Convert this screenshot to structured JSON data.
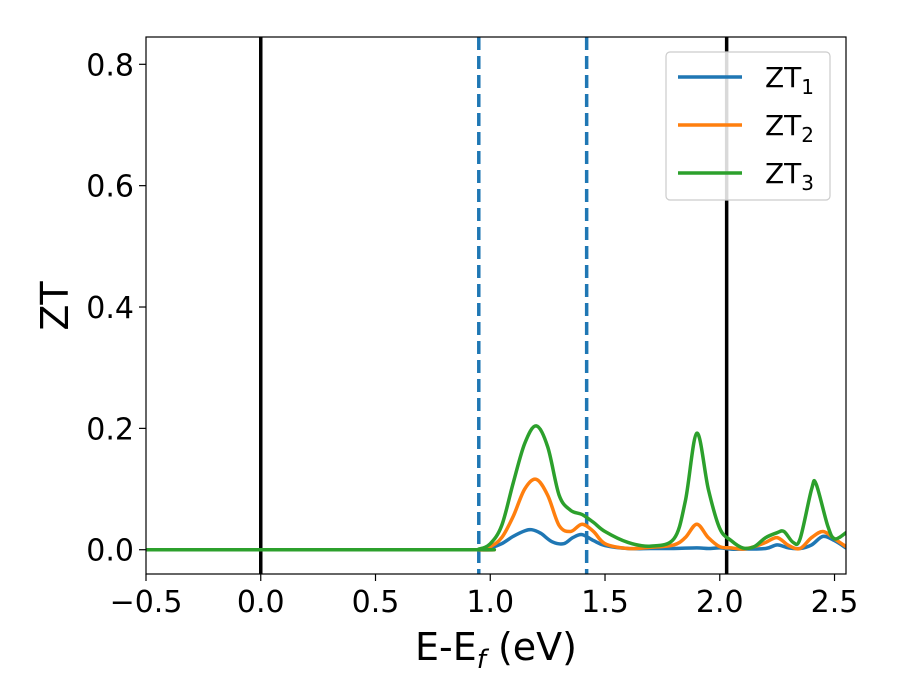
{
  "chart_data": {
    "type": "line",
    "xlabel": "E-E",
    "xlabel_sub": "f",
    "xlabel_unit": " (eV)",
    "ylabel": "ZT",
    "xlim": [
      -0.5,
      2.55
    ],
    "ylim": [
      -0.04,
      0.845
    ],
    "xticks": [
      {
        "value": -0.5,
        "label": "−0.5"
      },
      {
        "value": 0.0,
        "label": "0.0"
      },
      {
        "value": 0.5,
        "label": "0.5"
      },
      {
        "value": 1.0,
        "label": "1.0"
      },
      {
        "value": 1.5,
        "label": "1.5"
      },
      {
        "value": 2.0,
        "label": "2.0"
      },
      {
        "value": 2.5,
        "label": "2.5"
      }
    ],
    "yticks": [
      {
        "value": 0.0,
        "label": "0.0"
      },
      {
        "value": 0.2,
        "label": "0.2"
      },
      {
        "value": 0.4,
        "label": "0.4"
      },
      {
        "value": 0.6,
        "label": "0.6"
      },
      {
        "value": 0.8,
        "label": "0.8"
      }
    ],
    "grid": false,
    "legend_position": "top-right",
    "vlines": [
      {
        "x": 0.0,
        "style": "solid",
        "color": "#000000"
      },
      {
        "x": 2.03,
        "style": "solid",
        "color": "#000000"
      },
      {
        "x": 0.95,
        "style": "dashed",
        "color": "#1f77b4"
      },
      {
        "x": 1.42,
        "style": "dashed",
        "color": "#1f77b4"
      }
    ],
    "series": [
      {
        "name": "ZT",
        "sub": "1",
        "color": "#1f77b4",
        "points": [
          [
            -0.5,
            0.0
          ],
          [
            0.9,
            0.0
          ],
          [
            0.95,
            0.0
          ],
          [
            1.0,
            0.003
          ],
          [
            1.05,
            0.01
          ],
          [
            1.1,
            0.022
          ],
          [
            1.15,
            0.031
          ],
          [
            1.18,
            0.033
          ],
          [
            1.22,
            0.027
          ],
          [
            1.27,
            0.013
          ],
          [
            1.32,
            0.01
          ],
          [
            1.36,
            0.02
          ],
          [
            1.4,
            0.025
          ],
          [
            1.45,
            0.015
          ],
          [
            1.5,
            0.007
          ],
          [
            1.6,
            0.002
          ],
          [
            1.7,
            0.002
          ],
          [
            1.8,
            0.002
          ],
          [
            1.9,
            0.003
          ],
          [
            1.95,
            0.002
          ],
          [
            2.0,
            0.003
          ],
          [
            2.05,
            0.001
          ],
          [
            2.1,
            0.001
          ],
          [
            2.2,
            0.002
          ],
          [
            2.25,
            0.008
          ],
          [
            2.3,
            0.003
          ],
          [
            2.35,
            0.002
          ],
          [
            2.4,
            0.008
          ],
          [
            2.45,
            0.022
          ],
          [
            2.5,
            0.015
          ],
          [
            2.55,
            0.003
          ]
        ]
      },
      {
        "name": "ZT",
        "sub": "2",
        "color": "#ff7f0e",
        "points": [
          [
            -0.5,
            0.0
          ],
          [
            0.9,
            0.0
          ],
          [
            0.95,
            0.0
          ],
          [
            1.0,
            0.005
          ],
          [
            1.05,
            0.02
          ],
          [
            1.1,
            0.055
          ],
          [
            1.15,
            0.1
          ],
          [
            1.2,
            0.116
          ],
          [
            1.25,
            0.09
          ],
          [
            1.3,
            0.04
          ],
          [
            1.35,
            0.03
          ],
          [
            1.4,
            0.042
          ],
          [
            1.45,
            0.03
          ],
          [
            1.5,
            0.01
          ],
          [
            1.6,
            0.002
          ],
          [
            1.7,
            0.004
          ],
          [
            1.8,
            0.008
          ],
          [
            1.85,
            0.02
          ],
          [
            1.9,
            0.042
          ],
          [
            1.95,
            0.02
          ],
          [
            2.0,
            0.005
          ],
          [
            2.05,
            0.003
          ],
          [
            2.1,
            0.001
          ],
          [
            2.15,
            0.005
          ],
          [
            2.2,
            0.012
          ],
          [
            2.25,
            0.02
          ],
          [
            2.3,
            0.007
          ],
          [
            2.35,
            0.002
          ],
          [
            2.4,
            0.02
          ],
          [
            2.45,
            0.03
          ],
          [
            2.5,
            0.018
          ],
          [
            2.55,
            0.005
          ]
        ]
      },
      {
        "name": "ZT",
        "sub": "3",
        "color": "#2ca02c",
        "points": [
          [
            -0.5,
            0.0
          ],
          [
            0.9,
            0.0
          ],
          [
            0.95,
            0.001
          ],
          [
            1.0,
            0.01
          ],
          [
            1.05,
            0.04
          ],
          [
            1.1,
            0.11
          ],
          [
            1.15,
            0.175
          ],
          [
            1.2,
            0.204
          ],
          [
            1.25,
            0.17
          ],
          [
            1.3,
            0.09
          ],
          [
            1.35,
            0.065
          ],
          [
            1.4,
            0.058
          ],
          [
            1.45,
            0.045
          ],
          [
            1.5,
            0.03
          ],
          [
            1.6,
            0.012
          ],
          [
            1.7,
            0.006
          ],
          [
            1.8,
            0.018
          ],
          [
            1.85,
            0.08
          ],
          [
            1.9,
            0.192
          ],
          [
            1.95,
            0.1
          ],
          [
            2.0,
            0.035
          ],
          [
            2.05,
            0.015
          ],
          [
            2.1,
            0.003
          ],
          [
            2.15,
            0.005
          ],
          [
            2.2,
            0.02
          ],
          [
            2.25,
            0.028
          ],
          [
            2.28,
            0.03
          ],
          [
            2.32,
            0.012
          ],
          [
            2.35,
            0.018
          ],
          [
            2.4,
            0.1
          ],
          [
            2.42,
            0.108
          ],
          [
            2.47,
            0.04
          ],
          [
            2.5,
            0.018
          ],
          [
            2.55,
            0.028
          ]
        ]
      }
    ]
  }
}
